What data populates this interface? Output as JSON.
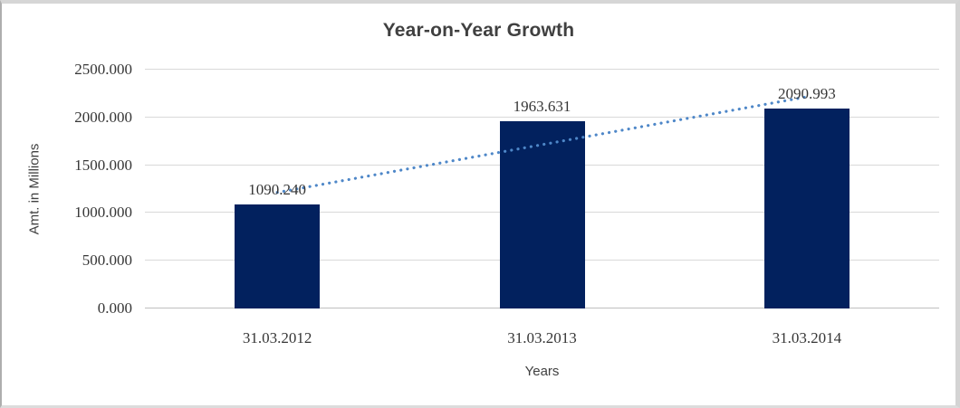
{
  "chart_data": {
    "type": "bar",
    "title": "Year-on-Year Growth",
    "categories": [
      "31.03.2012",
      "31.03.2013",
      "31.03.2014"
    ],
    "values": [
      1090.24,
      1963.631,
      2090.993
    ],
    "data_labels": [
      "1090.240",
      "1963.631",
      "2090.993"
    ],
    "xlabel": "Years",
    "ylabel": "Amt. in Millions",
    "ylim": [
      0,
      2500
    ],
    "yticks": [
      {
        "value": 0,
        "label": "0.000"
      },
      {
        "value": 500,
        "label": "500.000"
      },
      {
        "value": 1000,
        "label": "1000.000"
      },
      {
        "value": 1500,
        "label": "1500.000"
      },
      {
        "value": 2000,
        "label": "2000.000"
      },
      {
        "value": 2500,
        "label": "2500.000"
      }
    ],
    "grid": true,
    "legend": false,
    "trendline": {
      "type": "linear",
      "style": "dotted"
    },
    "colors": {
      "bar": "#02215E",
      "trendline": "#4E87C8",
      "gridline": "#D9D9D9",
      "axis_line": "#BFBFBF",
      "text": "#3F3F3F"
    }
  }
}
